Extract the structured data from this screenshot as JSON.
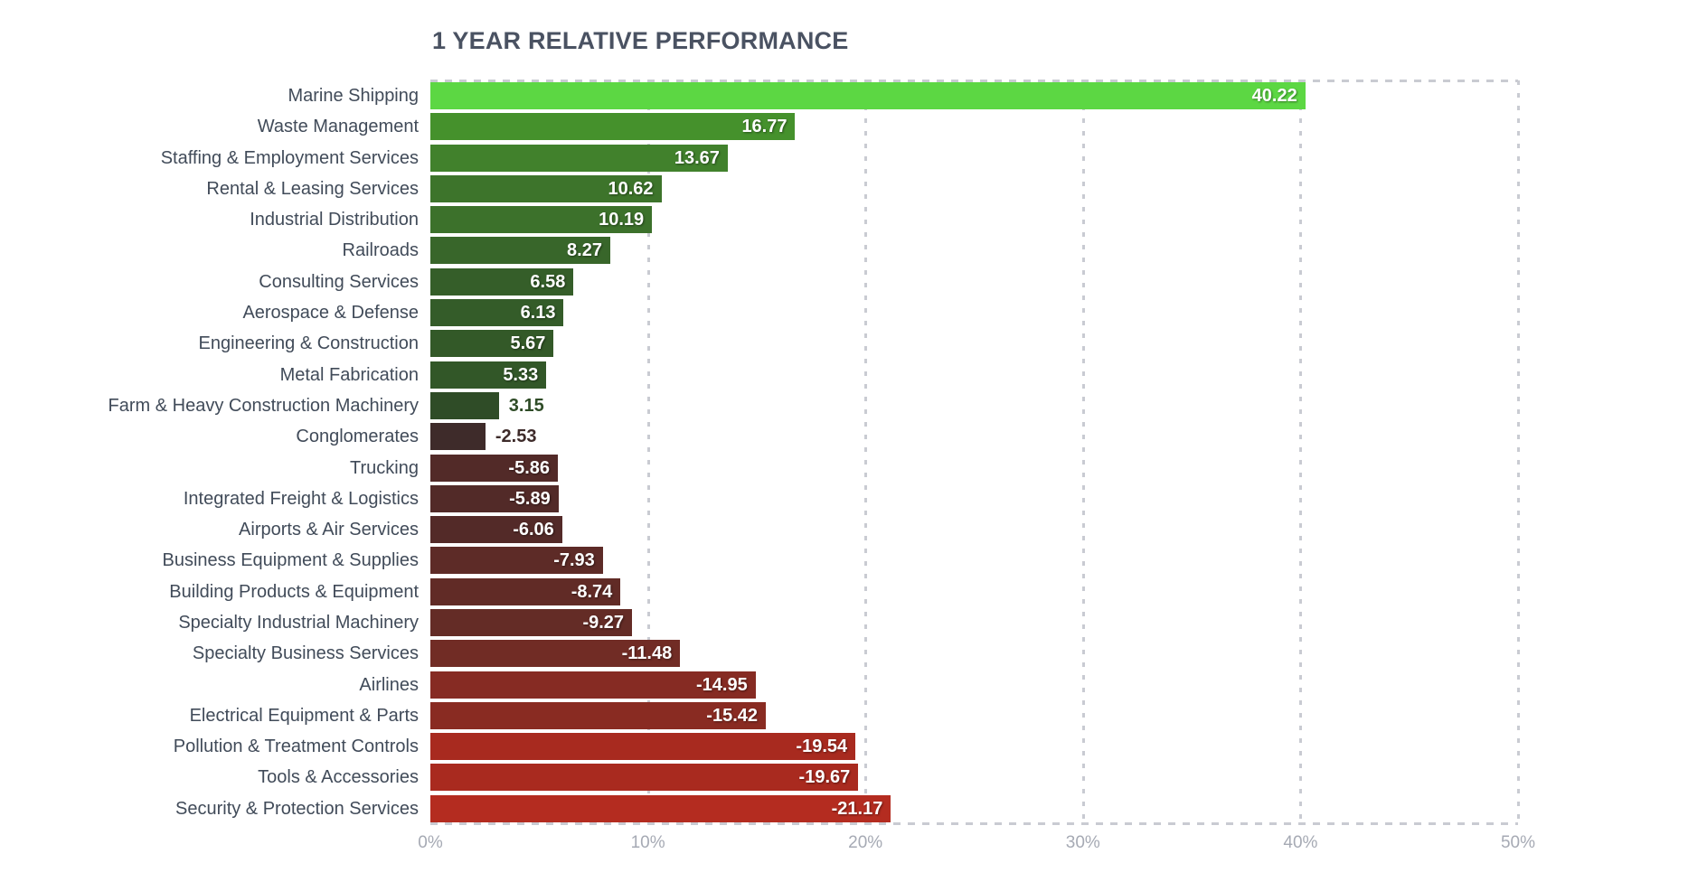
{
  "title": "1 YEAR RELATIVE PERFORMANCE",
  "colors": {
    "title_text": "#4a5262",
    "category_text": "#414b59",
    "axis_text": "#a6aab4",
    "grid": "#c9cbd2",
    "inside_value_text": "#ffffff",
    "background": "#ffffff"
  },
  "chart_data": {
    "type": "bar",
    "orientation": "horizontal",
    "title": "1 YEAR RELATIVE PERFORMANCE",
    "categories": [
      "Marine Shipping",
      "Waste Management",
      "Staffing & Employment Services",
      "Rental & Leasing Services",
      "Industrial Distribution",
      "Railroads",
      "Consulting Services",
      "Aerospace & Defense",
      "Engineering & Construction",
      "Metal Fabrication",
      "Farm & Heavy Construction Machinery",
      "Conglomerates",
      "Trucking",
      "Integrated Freight & Logistics",
      "Airports & Air Services",
      "Business Equipment & Supplies",
      "Building Products & Equipment",
      "Specialty Industrial Machinery",
      "Specialty Business Services",
      "Airlines",
      "Electrical Equipment & Parts",
      "Pollution & Treatment Controls",
      "Tools & Accessories",
      "Security & Protection Services"
    ],
    "values": [
      40.22,
      16.77,
      13.67,
      10.62,
      10.19,
      8.27,
      6.58,
      6.13,
      5.67,
      5.33,
      3.15,
      -2.53,
      -5.86,
      -5.89,
      -6.06,
      -7.93,
      -8.74,
      -9.27,
      -11.48,
      -14.95,
      -15.42,
      -19.54,
      -19.67,
      -21.17
    ],
    "value_labels": [
      "40.22",
      "16.77",
      "13.67",
      "10.62",
      "10.19",
      "8.27",
      "6.58",
      "6.13",
      "5.67",
      "5.33",
      "3.15",
      "-2.53",
      "-5.86",
      "-5.89",
      "-6.06",
      "-7.93",
      "-8.74",
      "-9.27",
      "-11.48",
      "-14.95",
      "-15.42",
      "-19.54",
      "-19.67",
      "-21.17"
    ],
    "bar_colors": [
      "#5cd743",
      "#45912c",
      "#41812c",
      "#3d742b",
      "#3c712b",
      "#38662a",
      "#355e29",
      "#345c29",
      "#335928",
      "#325728",
      "#2f4c27",
      "#3e2b2a",
      "#522a28",
      "#522a28",
      "#532a28",
      "#5d2b27",
      "#612b26",
      "#642c26",
      "#712c25",
      "#862b23",
      "#892b22",
      "#a82a1f",
      "#a92a1f",
      "#b42c20"
    ],
    "x_ticks": [
      "0%",
      "10%",
      "20%",
      "30%",
      "40%",
      "50%"
    ],
    "x_tick_values": [
      0,
      10,
      20,
      30,
      40,
      50
    ],
    "xlim": [
      0,
      50
    ],
    "bar_length_rule": "absolute value of percent, all bars start at 0%",
    "grid": "dashed vertical gridlines at each 10%, dashed top and bottom plot borders",
    "legend": "none",
    "xlabel": "",
    "ylabel": ""
  }
}
